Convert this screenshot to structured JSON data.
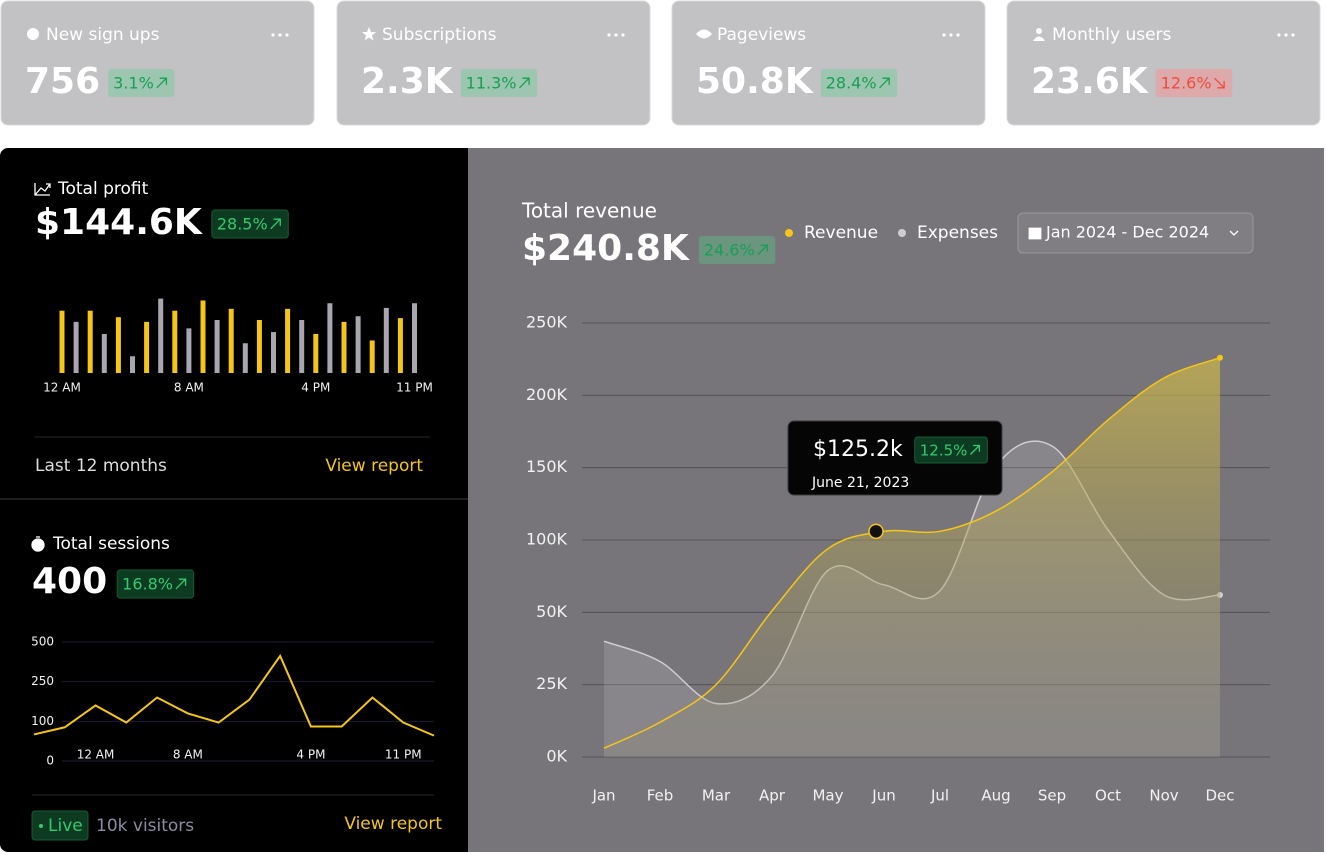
{
  "stat_cards": [
    {
      "label": "New sign ups",
      "value": "756",
      "change": "3.1%",
      "trend": "up"
    },
    {
      "label": "Subscriptions",
      "value": "2.3K",
      "change": "11.3%",
      "trend": "up"
    },
    {
      "label": "Pageviews",
      "value": "50.8K",
      "change": "28.4%",
      "trend": "up"
    },
    {
      "label": "Monthly users",
      "value": "23.6K",
      "change": "12.6%",
      "trend": "down"
    }
  ],
  "profit": {
    "title": "Total profit",
    "value": "$144.6K",
    "change": "28.5%",
    "footer": "Last 12 months",
    "link": "View report"
  },
  "sessions": {
    "title": "Total sessions",
    "value": "400",
    "change": "16.8%",
    "live": "Live",
    "visitors": "10k visitors",
    "link": "View report"
  },
  "revenue": {
    "title": "Total revenue",
    "value": "$240.8K",
    "change": "24.6%",
    "date_range": "Jan 2024 - Dec 2024",
    "tooltip": {
      "value": "$125.2k",
      "change": "12.5%",
      "date": "June 21, 2023"
    }
  },
  "chart_data": [
    {
      "type": "bar",
      "categories": [
        "12 AM",
        null,
        null,
        null,
        null,
        null,
        null,
        null,
        null,
        "8 AM",
        null,
        null,
        null,
        null,
        null,
        null,
        null,
        null,
        "4 PM",
        null,
        null,
        null,
        null,
        null,
        null,
        "11 PM"
      ],
      "values": [
        67,
        55,
        67,
        42,
        60,
        18,
        55,
        80,
        67,
        48,
        78,
        57,
        69,
        32,
        57,
        44,
        69,
        57,
        42,
        75,
        55,
        61,
        35,
        70,
        59,
        75
      ],
      "colors": [
        "#f5c518",
        "#a9a6b0"
      ],
      "ylim": [
        0,
        100
      ]
    },
    {
      "type": "line",
      "categories": [
        null,
        null,
        "12 AM",
        null,
        null,
        "8 AM",
        null,
        null,
        null,
        "4 PM",
        null,
        null,
        "11 PM",
        null
      ],
      "values": [
        67,
        85,
        160,
        97,
        190,
        130,
        97,
        182,
        412,
        87,
        87,
        190,
        97,
        64
      ],
      "color": "#f5c518",
      "ylim": [
        0,
        500
      ],
      "yticks": [
        0,
        100,
        250,
        500
      ],
      "grid": true
    },
    {
      "type": "line",
      "area": true,
      "categories": [
        "Jan",
        "Feb",
        "Mar",
        "Apr",
        "May",
        "Jun",
        "Jul",
        "Aug",
        "Sep",
        "Oct",
        "Nov",
        "Dec"
      ],
      "series": [
        {
          "name": "Revenue",
          "color": "#f5c518",
          "values": [
            3000,
            12000,
            25000,
            51000,
            94000,
            106000,
            106000,
            120000,
            147000,
            183000,
            212000,
            226000
          ]
        },
        {
          "name": "Expenses",
          "color": "#cfcdd2",
          "values": [
            40000,
            33000,
            18500,
            28000,
            79000,
            69000,
            65000,
            151000,
            165000,
            107000,
            62000,
            62000
          ]
        }
      ],
      "ylim": [
        0,
        250000
      ],
      "yticks": [
        {
          "value": 0,
          "label": "0K"
        },
        {
          "value": 25000,
          "label": "25K"
        },
        {
          "value": 50000,
          "label": "50K"
        },
        {
          "value": 100000,
          "label": "100K"
        },
        {
          "value": 150000,
          "label": "150K"
        },
        {
          "value": 200000,
          "label": "200K"
        },
        {
          "value": 250000,
          "label": "250K"
        }
      ],
      "grid": true
    }
  ]
}
